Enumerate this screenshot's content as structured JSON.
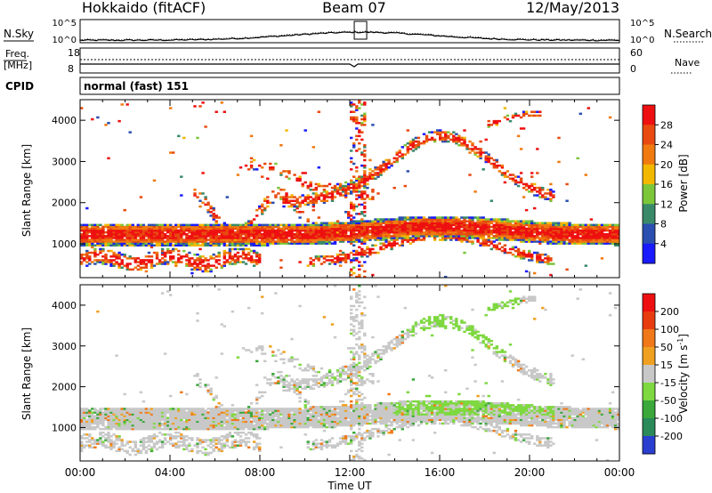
{
  "header": {
    "station": "Hokkaido (fitACF)",
    "beam": "Beam 07",
    "date": "12/May/2013"
  },
  "summary": {
    "nsky_label": "N.Sky",
    "nsearch_label": "N.Search",
    "freq_label": "Freq.",
    "freq_unit": "[MHz]",
    "nave_label": "Nave",
    "cpid_label": "CPID",
    "cpid_text": "normal (fast) 151",
    "noise_left_ticks": [
      "10^5",
      "10^0"
    ],
    "noise_right_ticks": [
      "10^5",
      "10^0"
    ],
    "freq_ticks": [
      "18",
      "8"
    ],
    "nave_ticks": [
      "60",
      "0"
    ]
  },
  "chart_data": [
    {
      "type": "heatmap",
      "name": "power",
      "ylabel": "Slant Range [km]",
      "ylim": [
        180,
        4500
      ],
      "yticks": [
        1000,
        2000,
        3000,
        4000
      ],
      "xlim": [
        0,
        24
      ],
      "colorbar": {
        "label": "Power [dB]",
        "ticks": [
          "4",
          "8",
          "12",
          "16",
          "20",
          "24",
          "28"
        ],
        "colors": [
          "#1a1aff",
          "#2a4fb0",
          "#3a8a6a",
          "#7cc63a",
          "#f2b800",
          "#f07a10",
          "#e84a10",
          "#ee1010"
        ]
      }
    },
    {
      "type": "heatmap",
      "name": "velocity",
      "ylabel": "Slant Range [km]",
      "ylim": [
        180,
        4500
      ],
      "yticks": [
        1000,
        2000,
        3000,
        4000
      ],
      "xlim": [
        0,
        24
      ],
      "colorbar": {
        "label": "Velocity [m s",
        "label_sup": "-1",
        "label_end": "]",
        "ticks": [
          "200",
          "100",
          "50",
          "15",
          "-15",
          "-50",
          "-100",
          "-200"
        ],
        "colors": [
          "#2a3fd0",
          "#2a8a5a",
          "#3aa83a",
          "#7ed840",
          "#c8c8c8",
          "#f0a020",
          "#f07818",
          "#e83c10",
          "#ee1010"
        ]
      }
    }
  ],
  "xaxis": {
    "label": "Time UT",
    "ticks": [
      "00:00",
      "04:00",
      "08:00",
      "12:00",
      "16:00",
      "20:00",
      "00:00"
    ]
  }
}
